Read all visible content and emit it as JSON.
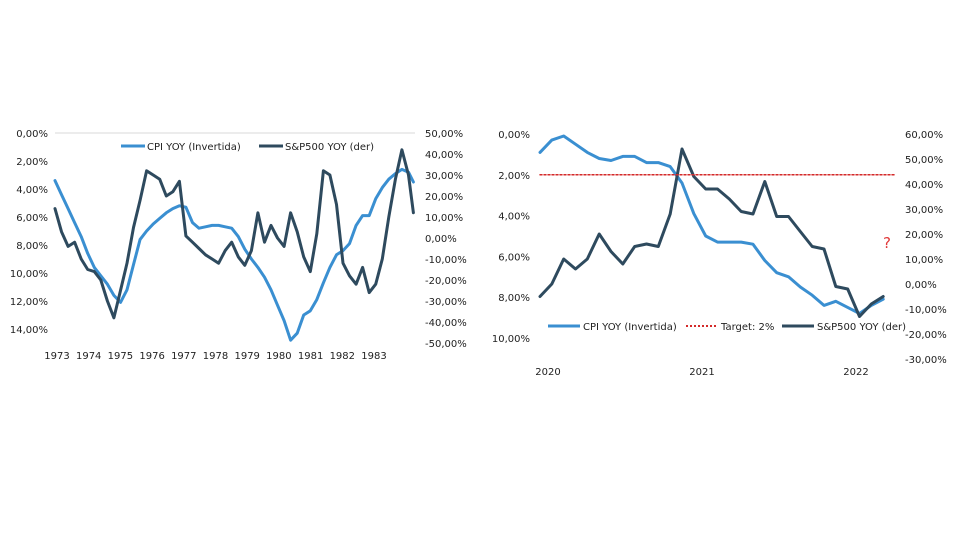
{
  "chart_data": [
    {
      "type": "line",
      "x_ticks": [
        "1973",
        "1974",
        "1975",
        "1976",
        "1977",
        "1978",
        "1979",
        "1980",
        "1981",
        "1982",
        "1983"
      ],
      "left_axis": {
        "ticks": [
          "0,00%",
          "2,00%",
          "4,00%",
          "6,00%",
          "8,00%",
          "10,00%",
          "12,00%",
          "14,00%"
        ],
        "range": [
          0,
          14
        ],
        "inverted": true
      },
      "right_axis": {
        "ticks": [
          "50,00%",
          "40,00%",
          "30,00%",
          "20,00%",
          "10,00%",
          "0,00%",
          "-10,00%",
          "-20,00%",
          "-30,00%",
          "-40,00%",
          "-50,00%"
        ],
        "range": [
          -50,
          50
        ]
      },
      "xlim": [
        1973.0,
        1984.0
      ],
      "series": [
        {
          "name": "CPI YOY (Invertida)",
          "axis": "left",
          "color": "#3a8fd1",
          "x": [
            1973.0,
            1973.2,
            1973.4,
            1973.6,
            1973.8,
            1974.0,
            1974.2,
            1974.4,
            1974.6,
            1974.8,
            1975.0,
            1975.2,
            1975.4,
            1975.6,
            1975.8,
            1976.0,
            1976.2,
            1976.4,
            1976.6,
            1976.8,
            1977.0,
            1977.2,
            1977.4,
            1977.6,
            1977.8,
            1978.0,
            1978.2,
            1978.4,
            1978.6,
            1978.8,
            1979.0,
            1979.2,
            1979.4,
            1979.6,
            1979.8,
            1980.0,
            1980.2,
            1980.4,
            1980.6,
            1980.8,
            1981.0,
            1981.2,
            1981.4,
            1981.6,
            1981.8,
            1982.0,
            1982.2,
            1982.4,
            1982.6,
            1982.8,
            1983.0,
            1983.2,
            1983.4,
            1983.6,
            1983.8,
            1983.95
          ],
          "y": [
            3.4,
            4.4,
            5.4,
            6.4,
            7.4,
            8.6,
            9.6,
            10.2,
            10.8,
            11.6,
            12.1,
            11.2,
            9.4,
            7.6,
            7.0,
            6.5,
            6.1,
            5.7,
            5.4,
            5.2,
            5.3,
            6.4,
            6.8,
            6.7,
            6.6,
            6.6,
            6.7,
            6.8,
            7.4,
            8.3,
            9.0,
            9.6,
            10.3,
            11.2,
            12.3,
            13.4,
            14.8,
            14.3,
            13.0,
            12.7,
            11.9,
            10.7,
            9.6,
            8.7,
            8.4,
            7.9,
            6.6,
            5.9,
            5.9,
            4.7,
            3.9,
            3.3,
            2.9,
            2.6,
            2.8,
            3.5
          ]
        },
        {
          "name": "S&P500 YOY (der)",
          "axis": "right",
          "color": "#2e4a5e",
          "x": [
            1973.0,
            1973.2,
            1973.4,
            1973.6,
            1973.8,
            1974.0,
            1974.2,
            1974.4,
            1974.6,
            1974.8,
            1975.0,
            1975.2,
            1975.4,
            1975.6,
            1975.8,
            1976.0,
            1976.2,
            1976.4,
            1976.6,
            1976.8,
            1977.0,
            1977.2,
            1977.4,
            1977.6,
            1977.8,
            1978.0,
            1978.2,
            1978.4,
            1978.6,
            1978.8,
            1979.0,
            1979.2,
            1979.4,
            1979.6,
            1979.8,
            1980.0,
            1980.2,
            1980.4,
            1980.6,
            1980.8,
            1981.0,
            1981.2,
            1981.4,
            1981.6,
            1981.8,
            1982.0,
            1982.2,
            1982.4,
            1982.6,
            1982.8,
            1983.0,
            1983.2,
            1983.4,
            1983.6,
            1983.8,
            1983.95
          ],
          "y": [
            14,
            3,
            -4,
            -2,
            -10,
            -15,
            -16,
            -20,
            -30,
            -38,
            -25,
            -12,
            5,
            18,
            32,
            30,
            28,
            20,
            22,
            27,
            1,
            -2,
            -5,
            -8,
            -10,
            -12,
            -6,
            -2,
            -9,
            -13,
            -6,
            12,
            -2,
            6,
            0,
            -4,
            12,
            3,
            -9,
            -16,
            2,
            32,
            30,
            16,
            -12,
            -18,
            -22,
            -14,
            -26,
            -22,
            -10,
            10,
            28,
            42,
            30,
            12
          ]
        }
      ],
      "legend": [
        "CPI YOY (Invertida)",
        "S&P500 YOY (der)"
      ],
      "legend_position": "top"
    },
    {
      "type": "line",
      "x_ticks": [
        "2020",
        "2021",
        "2022"
      ],
      "left_axis": {
        "ticks": [
          "0,00%",
          "2,00%",
          "4,00%",
          "6,00%",
          "8,00%",
          "10,00%"
        ],
        "range": [
          0,
          10
        ],
        "inverted": true
      },
      "right_axis": {
        "ticks": [
          "60,00%",
          "50,00%",
          "40,00%",
          "30,00%",
          "20,00%",
          "10,00%",
          "0,00%",
          "-10,00%",
          "-20,00%",
          "-30,00%"
        ],
        "range": [
          -30,
          60
        ]
      },
      "xlim": [
        2020.0,
        2022.5
      ],
      "series": [
        {
          "name": "CPI YOY (Invertida)",
          "axis": "left",
          "color": "#3a8fd1",
          "x": [
            2020.0,
            2020.083,
            2020.167,
            2020.25,
            2020.333,
            2020.417,
            2020.5,
            2020.583,
            2020.667,
            2020.75,
            2020.833,
            2020.917,
            2021.0,
            2021.083,
            2021.167,
            2021.25,
            2021.333,
            2021.417,
            2021.5,
            2021.583,
            2021.667,
            2021.75,
            2021.833,
            2021.917,
            2022.0,
            2022.083,
            2022.167,
            2022.25,
            2022.333,
            2022.417
          ],
          "y": [
            0.9,
            0.3,
            0.1,
            0.5,
            0.9,
            1.2,
            1.3,
            1.1,
            1.1,
            1.4,
            1.4,
            1.6,
            2.4,
            3.9,
            5.0,
            5.3,
            5.3,
            5.3,
            5.4,
            6.2,
            6.8,
            7.0,
            7.5,
            7.9,
            8.4,
            8.2,
            8.5,
            8.8,
            8.4,
            8.1
          ]
        },
        {
          "name": "S&P500 YOY (der)",
          "axis": "right",
          "color": "#2e4a5e",
          "x": [
            2020.0,
            2020.083,
            2020.167,
            2020.25,
            2020.333,
            2020.417,
            2020.5,
            2020.583,
            2020.667,
            2020.75,
            2020.833,
            2020.917,
            2021.0,
            2021.083,
            2021.167,
            2021.25,
            2021.333,
            2021.417,
            2021.5,
            2021.583,
            2021.667,
            2021.75,
            2021.833,
            2021.917,
            2022.0,
            2022.083,
            2022.167,
            2022.25,
            2022.333,
            2022.417
          ],
          "y": [
            -5,
            0,
            10,
            6,
            10,
            20,
            13,
            8,
            15,
            16,
            15,
            28,
            54,
            43,
            38,
            38,
            34,
            29,
            28,
            41,
            27,
            27,
            21,
            15,
            14,
            -1,
            -2,
            -13,
            -8,
            -5
          ]
        },
        {
          "name": "Target: 2%",
          "axis": "left",
          "color": "#d42a2a",
          "style": "dotted",
          "x": [
            2020.0,
            2022.5
          ],
          "y": [
            2.0,
            2.0
          ]
        }
      ],
      "legend": [
        "CPI YOY (Invertida)",
        "Target: 2%",
        "S&P500 YOY (der)"
      ],
      "legend_position": "bottom",
      "annotation": "?"
    }
  ]
}
